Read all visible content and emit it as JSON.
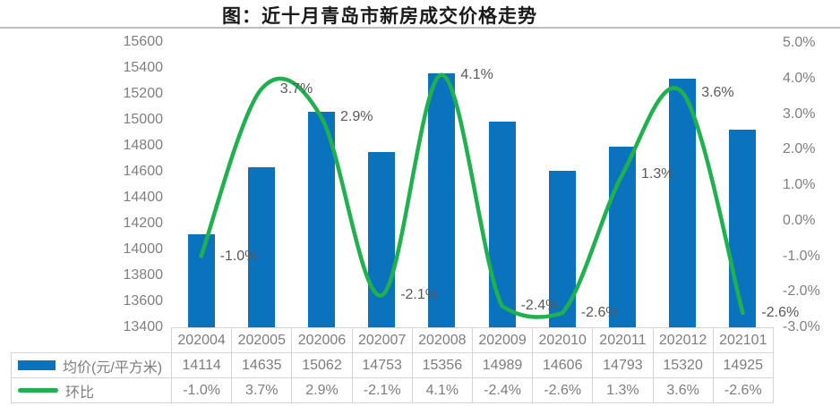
{
  "title": "图：近十月青岛市新房成交价格走势",
  "colors": {
    "bar": "#0b72be",
    "line": "#1fb14d",
    "axis_text": "#7f7f7f",
    "data_label_text": "#595959",
    "table_border": "#d4d4d4",
    "title_rule": "#bdbdbd"
  },
  "chart_data": {
    "type": "combo-bar-line",
    "title": "图：近十月青岛市新房成交价格走势",
    "categories": [
      "202004",
      "202005",
      "202006",
      "202007",
      "202008",
      "202009",
      "202010",
      "202011",
      "202012",
      "202101"
    ],
    "series": [
      {
        "name": "均价(元/平方米)",
        "type": "bar",
        "axis": "left",
        "values": [
          14114,
          14635,
          15062,
          14753,
          15356,
          14989,
          14606,
          14793,
          15320,
          14925
        ]
      },
      {
        "name": "环比",
        "type": "line",
        "smooth": true,
        "axis": "right",
        "values": [
          -1.0,
          3.7,
          2.9,
          -2.1,
          4.1,
          -2.4,
          -2.6,
          1.3,
          3.6,
          -2.6
        ],
        "labels": [
          "-1.0%",
          "3.7%",
          "2.9%",
          "-2.1%",
          "4.1%",
          "-2.4%",
          "-2.6%",
          "1.3%",
          "3.6%",
          "-2.6%"
        ]
      }
    ],
    "left_axis": {
      "min": 13400,
      "max": 15600,
      "step": 200,
      "ticks": [
        "15600",
        "15400",
        "15200",
        "15000",
        "14800",
        "14600",
        "14400",
        "14200",
        "14000",
        "13800",
        "13600",
        "13400"
      ]
    },
    "right_axis": {
      "min": -3.0,
      "max": 5.0,
      "step": 1.0,
      "ticks": [
        "5.0%",
        "4.0%",
        "3.0%",
        "2.0%",
        "1.0%",
        "0.0%",
        "-1.0%",
        "-2.0%",
        "-3.0%"
      ]
    },
    "grid": false,
    "legend_position": "table-bottom-left"
  },
  "table": {
    "legend_rows": [
      {
        "swatch": "bar-swatch",
        "label": "均价(元/平方米)"
      },
      {
        "swatch": "line-swatch",
        "label": "环比"
      }
    ]
  }
}
